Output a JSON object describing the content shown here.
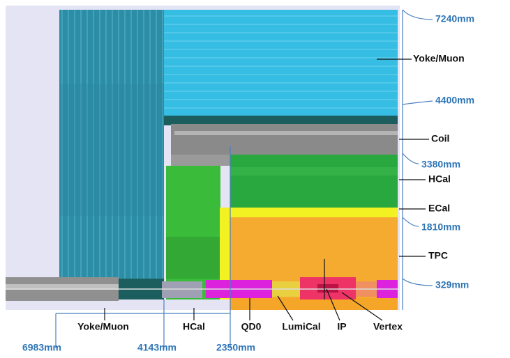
{
  "right_labels": [
    "Yoke/Muon",
    "Coil",
    "HCal",
    "ECal",
    "TPC"
  ],
  "right_dimensions": [
    "7240mm",
    "4400mm",
    "3380mm",
    "1810mm",
    "329mm"
  ],
  "bottom_labels": [
    "Yoke/Muon",
    "HCal",
    "QD0",
    "LumiCal",
    "IP",
    "Vertex"
  ],
  "bottom_dimensions": [
    "6983mm",
    "4143mm",
    "2350mm"
  ]
}
